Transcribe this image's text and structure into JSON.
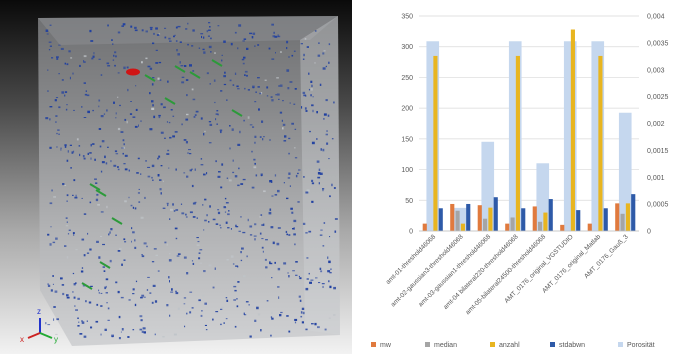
{
  "viewer": {
    "axis_labels": {
      "x": "x",
      "y": "y",
      "z": "z"
    },
    "colors": {
      "blue_voxel": "#1f3fa0",
      "green_voxel": "#2c9a3a",
      "red_voxel": "#d01515",
      "gray_voxel": "#bfc4c8"
    }
  },
  "chart_data": {
    "type": "bar",
    "categories": [
      "amt-01-threshold46068",
      "amt-02-gaussian3-threshold46068",
      "amt-03-gaussian1-threshold46068",
      "amt-04 bilateral220-threshold46068",
      "amt-05-bilateral24500-threshold46068",
      "AMT_0176_original_VGSTUDIO",
      "AMT_0176_original_Matlab",
      "AMT_0176_Gauß_3"
    ],
    "series": [
      {
        "name": "mw",
        "axis": "left",
        "color": "#e07a3e",
        "values": [
          12,
          44,
          42,
          12,
          40,
          10,
          12,
          45
        ]
      },
      {
        "name": "median",
        "axis": "left",
        "color": "#a5a5a5",
        "values": [
          0,
          33,
          20,
          22,
          15,
          0,
          0,
          28
        ]
      },
      {
        "name": "anzahl",
        "axis": "left",
        "color": "#e8b520",
        "values": [
          285,
          12,
          38,
          285,
          30,
          328,
          285,
          45
        ]
      },
      {
        "name": "stdabwn",
        "axis": "left",
        "color": "#2e5aa8",
        "values": [
          37,
          44,
          55,
          37,
          52,
          34,
          37,
          60
        ]
      },
      {
        "name": "Porosität",
        "axis": "right",
        "color": "#c5d7ee",
        "values": [
          0.00353,
          0.00043,
          0.00166,
          0.00353,
          0.00126,
          0.00353,
          0.00353,
          0.0022
        ]
      }
    ],
    "ylim": [
      0,
      350
    ],
    "yticks": [
      "0",
      "50",
      "100",
      "150",
      "200",
      "250",
      "300",
      "350"
    ],
    "y2lim": [
      0,
      0.004
    ],
    "y2ticks": [
      "0",
      "0,0005",
      "0,001",
      "0,0015",
      "0,002",
      "0,0025",
      "0,003",
      "0,0035",
      "0,004"
    ],
    "grid": true,
    "legend_position": "bottom"
  }
}
